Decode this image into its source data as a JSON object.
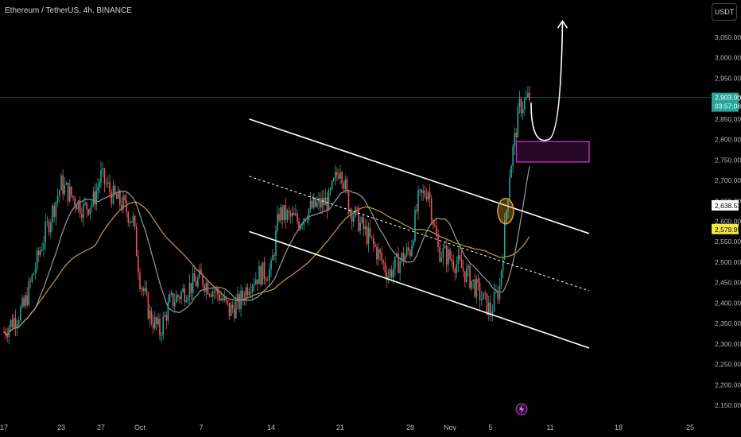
{
  "header": {
    "title": "Ethereum / TetherUS, 4h, BINANCE",
    "currency_button": "USDT"
  },
  "colors": {
    "background": "#000000",
    "up_candle": "#26a69a",
    "down_candle": "#ef5350",
    "ma_fast": "#b2b5be",
    "ma_slow": "#c9a43a",
    "channel": "#ffffff",
    "zone": "#cc33cc",
    "highlight_circle": "#e0a030",
    "current_price_badge": "#26a69a",
    "ma_badge": "#f5e642"
  },
  "chart_data": {
    "type": "candlestick",
    "symbol": "Ethereum / TetherUS",
    "interval": "4h",
    "exchange": "BINANCE",
    "y_ticks": [
      3050,
      3000,
      2950,
      2900,
      2850,
      2800,
      2750,
      2700,
      2650,
      2600,
      2550,
      2500,
      2450,
      2400,
      2350,
      2300,
      2250,
      2200,
      2150
    ],
    "y_tick_labels": [
      "3,050.00",
      "3,000.00",
      "2,950.00",
      "2,900.00",
      "2,850.00",
      "2,800.00",
      "2,750.00",
      "2,700.00",
      "2,650.00",
      "2,600.00",
      "2,550.00",
      "2,500.00",
      "2,450.00",
      "2,400.00",
      "2,350.00",
      "2,300.00",
      "2,250.00",
      "2,200.00",
      "2,150.00"
    ],
    "ylim": [
      2125,
      3100
    ],
    "x_tick_labels": [
      "17",
      "23",
      "27",
      "Oct",
      "7",
      "14",
      "21",
      "28",
      "Nov",
      "5",
      "11",
      "18",
      "25"
    ],
    "current_price": {
      "value": "2,903.00",
      "countdown": "03:57:08"
    },
    "badges": [
      {
        "name": "ma-fast-value",
        "value": "2,638.53"
      },
      {
        "name": "ma-slow-value",
        "value": "2,579.95"
      }
    ],
    "price_path": [
      [
        "17",
        2330
      ],
      [
        "19",
        2390
      ],
      [
        "21",
        2560
      ],
      [
        "23",
        2690
      ],
      [
        "25",
        2630
      ],
      [
        "26",
        2650
      ],
      [
        "27",
        2710
      ],
      [
        "28",
        2660
      ],
      [
        "29",
        2640
      ],
      [
        "30",
        2600
      ],
      [
        "Oct 1",
        2460
      ],
      [
        "Oct 2",
        2370
      ],
      [
        "Oct 3",
        2330
      ],
      [
        "Oct 4",
        2400
      ],
      [
        "Oct 5",
        2420
      ],
      [
        "Oct 6",
        2440
      ],
      [
        "Oct 7",
        2460
      ],
      [
        "Oct 8",
        2440
      ],
      [
        "Oct 9",
        2420
      ],
      [
        "Oct 10",
        2380
      ],
      [
        "Oct 11",
        2400
      ],
      [
        "Oct 12",
        2450
      ],
      [
        "Oct 13",
        2470
      ],
      [
        "Oct 14",
        2480
      ],
      [
        "Oct 15",
        2620
      ],
      [
        "Oct 16",
        2610
      ],
      [
        "Oct 17",
        2600
      ],
      [
        "Oct 18",
        2630
      ],
      [
        "Oct 19",
        2640
      ],
      [
        "Oct 20",
        2650
      ],
      [
        "Oct 21",
        2740
      ],
      [
        "Oct 22",
        2640
      ],
      [
        "Oct 23",
        2600
      ],
      [
        "Oct 24",
        2560
      ],
      [
        "Oct 25",
        2520
      ],
      [
        "Oct 26",
        2470
      ],
      [
        "Oct 27",
        2500
      ],
      [
        "Oct 28",
        2530
      ],
      [
        "Oct 29",
        2650
      ],
      [
        "Oct 30",
        2680
      ],
      [
        "Oct 31",
        2530
      ],
      [
        "Nov 1",
        2510
      ],
      [
        "Nov 2",
        2490
      ],
      [
        "Nov 3",
        2460
      ],
      [
        "Nov 4",
        2420
      ],
      [
        "Nov 5",
        2380
      ],
      [
        "Nov 6",
        2440
      ],
      [
        "Nov 7",
        2720
      ],
      [
        "Nov 8",
        2880
      ],
      [
        "Nov 9",
        2903
      ]
    ],
    "annotations": {
      "channel_upper": [
        [
          "Oct 12",
          2850
        ],
        [
          "Nov 15",
          2570
        ]
      ],
      "channel_mid_dotted": [
        [
          "Oct 12",
          2710
        ],
        [
          "Nov 15",
          2430
        ]
      ],
      "channel_lower": [
        [
          "Oct 12",
          2575
        ],
        [
          "Nov 15",
          2290
        ]
      ],
      "demand_zone": {
        "x_from": "Nov 8",
        "x_to": "Nov 15",
        "y_low": 2745,
        "y_high": 2795
      },
      "projection_path": [
        [
          "Nov 9",
          2890
        ],
        [
          "Nov 10",
          2800
        ],
        [
          "Nov 11",
          2820
        ],
        [
          "Nov 12",
          3000
        ],
        [
          "Nov 12",
          3090
        ]
      ],
      "highlight": {
        "x": "Nov 7",
        "y": 2625
      }
    }
  }
}
